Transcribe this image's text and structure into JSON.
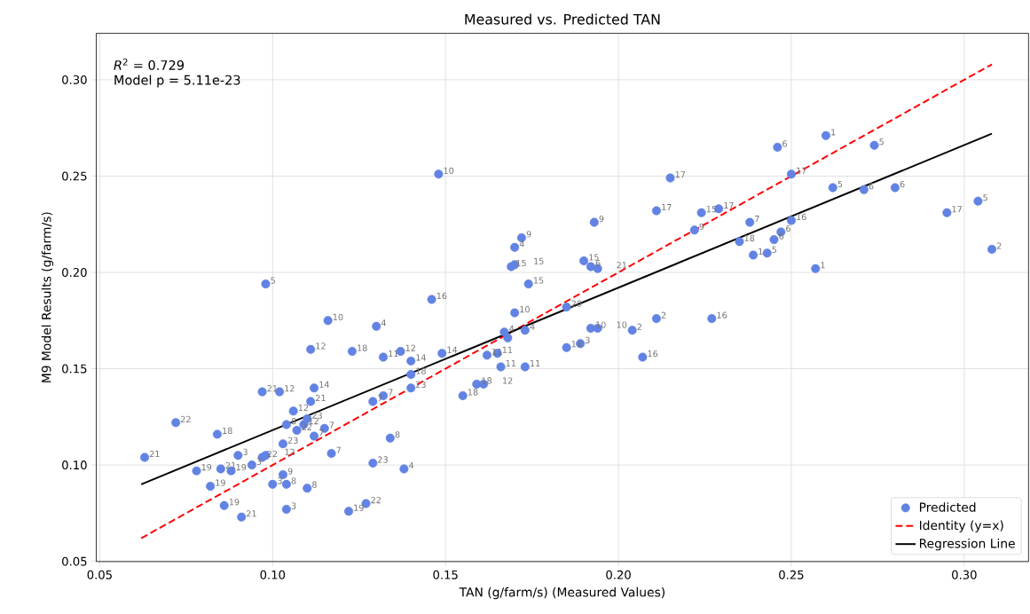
{
  "chart_data": {
    "type": "scatter",
    "title": "Measured vs. Predicted TAN",
    "xlabel": "TAN (g/farm/s) (Measured Values)",
    "ylabel": "M9 Model Results (g/farm/s)",
    "xlim": [
      0.049,
      0.3186
    ],
    "ylim": [
      0.0499,
      0.3241
    ],
    "xticks": [
      {
        "value": 0.05,
        "label": "0.05"
      },
      {
        "value": 0.1,
        "label": "0.10"
      },
      {
        "value": 0.15,
        "label": "0.15"
      },
      {
        "value": 0.2,
        "label": "0.20"
      },
      {
        "value": 0.25,
        "label": "0.25"
      },
      {
        "value": 0.3,
        "label": "0.30"
      }
    ],
    "yticks": [
      {
        "value": 0.05,
        "label": "0.05"
      },
      {
        "value": 0.1,
        "label": "0.10"
      },
      {
        "value": 0.15,
        "label": "0.15"
      },
      {
        "value": 0.2,
        "label": "0.20"
      },
      {
        "value": 0.25,
        "label": "0.25"
      },
      {
        "value": 0.3,
        "label": "0.30"
      }
    ],
    "grid": true,
    "legend": "bottom right",
    "annotations": [
      "*R*$^{2}$ = 0.729",
      "Model p = 5.11e-23",
      {
        "text": "21",
        "x": 0.063,
        "y": 0.104
      },
      {
        "text": "22",
        "x": 0.072,
        "y": 0.122
      },
      {
        "text": "18",
        "x": 0.084,
        "y": 0.116
      },
      {
        "text": "19",
        "x": 0.078,
        "y": 0.097
      },
      {
        "text": "19",
        "x": 0.082,
        "y": 0.089
      },
      {
        "text": "21",
        "x": 0.085,
        "y": 0.098
      },
      {
        "text": "19",
        "x": 0.088,
        "y": 0.097
      },
      {
        "text": "19",
        "x": 0.086,
        "y": 0.079
      },
      {
        "text": "21",
        "x": 0.091,
        "y": 0.073
      },
      {
        "text": "3",
        "x": 0.09,
        "y": 0.105
      },
      {
        "text": "3",
        "x": 0.094,
        "y": 0.1
      },
      {
        "text": "22",
        "x": 0.097,
        "y": 0.104
      },
      {
        "text": "12",
        "x": 0.098,
        "y": 0.105
      },
      {
        "text": "21",
        "x": 0.097,
        "y": 0.138
      },
      {
        "text": "12",
        "x": 0.102,
        "y": 0.138
      },
      {
        "text": "12",
        "x": 0.111,
        "y": 0.16
      },
      {
        "text": "18",
        "x": 0.123,
        "y": 0.159
      },
      {
        "text": "11",
        "x": 0.132,
        "y": 0.156
      },
      {
        "text": "12",
        "x": 0.137,
        "y": 0.159
      },
      {
        "text": "14",
        "x": 0.14,
        "y": 0.154
      },
      {
        "text": "18",
        "x": 0.14,
        "y": 0.147
      },
      {
        "text": "23",
        "x": 0.14,
        "y": 0.14
      },
      {
        "text": "14",
        "x": 0.112,
        "y": 0.14
      },
      {
        "text": "21",
        "x": 0.111,
        "y": 0.133
      },
      {
        "text": "12",
        "x": 0.106,
        "y": 0.128
      },
      {
        "text": "23",
        "x": 0.11,
        "y": 0.124
      },
      {
        "text": "8",
        "x": 0.104,
        "y": 0.121
      },
      {
        "text": "22",
        "x": 0.107,
        "y": 0.118
      },
      {
        "text": "12",
        "x": 0.109,
        "y": 0.121
      },
      {
        "text": "23",
        "x": 0.103,
        "y": 0.111
      },
      {
        "text": "7",
        "x": 0.112,
        "y": 0.115
      },
      {
        "text": "7",
        "x": 0.115,
        "y": 0.119
      },
      {
        "text": "7",
        "x": 0.117,
        "y": 0.106
      },
      {
        "text": "7",
        "x": 0.129,
        "y": 0.133
      },
      {
        "text": "7",
        "x": 0.132,
        "y": 0.136
      },
      {
        "text": "8",
        "x": 0.134,
        "y": 0.114
      },
      {
        "text": "23",
        "x": 0.129,
        "y": 0.101
      },
      {
        "text": "4",
        "x": 0.138,
        "y": 0.098
      },
      {
        "text": "9",
        "x": 0.103,
        "y": 0.095
      },
      {
        "text": "3",
        "x": 0.1,
        "y": 0.09
      },
      {
        "text": "8",
        "x": 0.104,
        "y": 0.09
      },
      {
        "text": "8",
        "x": 0.11,
        "y": 0.088
      },
      {
        "text": "3",
        "x": 0.104,
        "y": 0.077
      },
      {
        "text": "19",
        "x": 0.122,
        "y": 0.076
      },
      {
        "text": "22",
        "x": 0.127,
        "y": 0.08
      },
      {
        "text": "5",
        "x": 0.098,
        "y": 0.194
      },
      {
        "text": "10",
        "x": 0.116,
        "y": 0.175
      },
      {
        "text": "4",
        "x": 0.13,
        "y": 0.172
      },
      {
        "text": "10",
        "x": 0.148,
        "y": 0.251
      },
      {
        "text": "16",
        "x": 0.146,
        "y": 0.186
      },
      {
        "text": "14",
        "x": 0.149,
        "y": 0.158
      },
      {
        "text": "11",
        "x": 0.162,
        "y": 0.157
      },
      {
        "text": "11",
        "x": 0.165,
        "y": 0.158
      },
      {
        "text": "11",
        "x": 0.166,
        "y": 0.151
      },
      {
        "text": "11",
        "x": 0.173,
        "y": 0.151
      },
      {
        "text": "4",
        "x": 0.167,
        "y": 0.169
      },
      {
        "text": "4",
        "x": 0.173,
        "y": 0.17
      },
      {
        "text": "10",
        "x": 0.17,
        "y": 0.179
      },
      {
        "text": "15",
        "x": 0.174,
        "y": 0.194
      },
      {
        "text": "15",
        "x": 0.169,
        "y": 0.203
      },
      {
        "text": "15",
        "x": 0.17,
        "y": 0.204
      },
      {
        "text": "4",
        "x": 0.17,
        "y": 0.213
      },
      {
        "text": "9",
        "x": 0.172,
        "y": 0.218
      },
      {
        "text": "9",
        "x": 0.193,
        "y": 0.226
      },
      {
        "text": "15",
        "x": 0.19,
        "y": 0.206
      },
      {
        "text": "6",
        "x": 0.192,
        "y": 0.203
      },
      {
        "text": "21",
        "x": 0.194,
        "y": 0.202
      },
      {
        "text": "20",
        "x": 0.185,
        "y": 0.182
      },
      {
        "text": "10",
        "x": 0.192,
        "y": 0.171
      },
      {
        "text": "10",
        "x": 0.194,
        "y": 0.171
      },
      {
        "text": "14",
        "x": 0.185,
        "y": 0.161
      },
      {
        "text": "3",
        "x": 0.189,
        "y": 0.163
      },
      {
        "text": "2",
        "x": 0.204,
        "y": 0.17
      },
      {
        "text": "16",
        "x": 0.207,
        "y": 0.156
      },
      {
        "text": "2",
        "x": 0.211,
        "y": 0.176
      },
      {
        "text": "17",
        "x": 0.211,
        "y": 0.232
      },
      {
        "text": "18",
        "x": 0.155,
        "y": 0.136
      },
      {
        "text": "18",
        "x": 0.159,
        "y": 0.142
      },
      {
        "text": "12",
        "x": 0.161,
        "y": 0.142
      },
      {
        "text": "17",
        "x": 0.215,
        "y": 0.249
      },
      {
        "text": "15",
        "x": 0.224,
        "y": 0.231
      },
      {
        "text": "17",
        "x": 0.229,
        "y": 0.233
      },
      {
        "text": "9",
        "x": 0.222,
        "y": 0.222
      },
      {
        "text": "7",
        "x": 0.238,
        "y": 0.226
      },
      {
        "text": "18",
        "x": 0.235,
        "y": 0.216
      },
      {
        "text": "1",
        "x": 0.239,
        "y": 0.209
      },
      {
        "text": "5",
        "x": 0.243,
        "y": 0.21
      },
      {
        "text": "6",
        "x": 0.245,
        "y": 0.217
      },
      {
        "text": "6",
        "x": 0.247,
        "y": 0.221
      },
      {
        "text": "16",
        "x": 0.25,
        "y": 0.227
      },
      {
        "text": "6",
        "x": 0.246,
        "y": 0.265
      },
      {
        "text": "17",
        "x": 0.25,
        "y": 0.251
      },
      {
        "text": "1",
        "x": 0.26,
        "y": 0.271
      },
      {
        "text": "1",
        "x": 0.257,
        "y": 0.202
      },
      {
        "text": "5",
        "x": 0.262,
        "y": 0.244
      },
      {
        "text": "5",
        "x": 0.274,
        "y": 0.266
      },
      {
        "text": "6",
        "x": 0.271,
        "y": 0.243
      },
      {
        "text": "6",
        "x": 0.28,
        "y": 0.244
      },
      {
        "text": "17",
        "x": 0.295,
        "y": 0.231
      },
      {
        "text": "5",
        "x": 0.304,
        "y": 0.237
      },
      {
        "text": "2",
        "x": 0.308,
        "y": 0.212
      },
      {
        "text": "16",
        "x": 0.227,
        "y": 0.176
      }
    ],
    "series": [
      {
        "name": "Predicted",
        "color": "#6283e3",
        "marker": "circle",
        "x": [
          0.063,
          0.072,
          0.084,
          0.078,
          0.082,
          0.085,
          0.088,
          0.086,
          0.091,
          0.09,
          0.094,
          0.097,
          0.098,
          0.097,
          0.102,
          0.111,
          0.123,
          0.132,
          0.137,
          0.14,
          0.14,
          0.14,
          0.112,
          0.111,
          0.106,
          0.11,
          0.104,
          0.107,
          0.109,
          0.103,
          0.112,
          0.115,
          0.117,
          0.129,
          0.132,
          0.134,
          0.129,
          0.138,
          0.103,
          0.1,
          0.104,
          0.11,
          0.104,
          0.122,
          0.127,
          0.098,
          0.116,
          0.13,
          0.148,
          0.146,
          0.149,
          0.162,
          0.165,
          0.166,
          0.173,
          0.167,
          0.168,
          0.173,
          0.17,
          0.174,
          0.169,
          0.17,
          0.17,
          0.172,
          0.193,
          0.19,
          0.192,
          0.194,
          0.185,
          0.192,
          0.194,
          0.185,
          0.189,
          0.204,
          0.207,
          0.211,
          0.211,
          0.155,
          0.159,
          0.161,
          0.215,
          0.224,
          0.229,
          0.222,
          0.238,
          0.235,
          0.239,
          0.243,
          0.245,
          0.247,
          0.25,
          0.246,
          0.25,
          0.26,
          0.257,
          0.262,
          0.274,
          0.271,
          0.28,
          0.295,
          0.304,
          0.308,
          0.227
        ],
        "values": [
          0.104,
          0.122,
          0.116,
          0.097,
          0.089,
          0.098,
          0.097,
          0.079,
          0.073,
          0.105,
          0.1,
          0.104,
          0.105,
          0.138,
          0.138,
          0.16,
          0.159,
          0.156,
          0.159,
          0.154,
          0.147,
          0.14,
          0.14,
          0.133,
          0.128,
          0.124,
          0.121,
          0.118,
          0.121,
          0.111,
          0.115,
          0.119,
          0.106,
          0.133,
          0.136,
          0.114,
          0.101,
          0.098,
          0.095,
          0.09,
          0.09,
          0.088,
          0.077,
          0.076,
          0.08,
          0.194,
          0.175,
          0.172,
          0.251,
          0.186,
          0.158,
          0.157,
          0.158,
          0.151,
          0.151,
          0.169,
          0.166,
          0.17,
          0.179,
          0.194,
          0.203,
          0.204,
          0.213,
          0.218,
          0.226,
          0.206,
          0.203,
          0.202,
          0.182,
          0.171,
          0.171,
          0.161,
          0.163,
          0.17,
          0.156,
          0.176,
          0.232,
          0.136,
          0.142,
          0.142,
          0.249,
          0.231,
          0.233,
          0.222,
          0.226,
          0.216,
          0.209,
          0.21,
          0.217,
          0.221,
          0.227,
          0.265,
          0.251,
          0.271,
          0.202,
          0.244,
          0.266,
          0.243,
          0.244,
          0.231,
          0.237,
          0.212,
          0.176
        ]
      },
      {
        "name": "Identity (y=x)",
        "type": "line",
        "color": "#ff0000",
        "line_style": "dashed",
        "marker": "none",
        "x": [
          0.062,
          0.308
        ],
        "values": [
          0.062,
          0.308
        ]
      },
      {
        "name": "Regression Line",
        "type": "line",
        "color": "#000000",
        "line_style": "solid",
        "marker": "none",
        "x": [
          0.062,
          0.308
        ],
        "values": [
          0.09,
          0.272
        ]
      }
    ]
  }
}
